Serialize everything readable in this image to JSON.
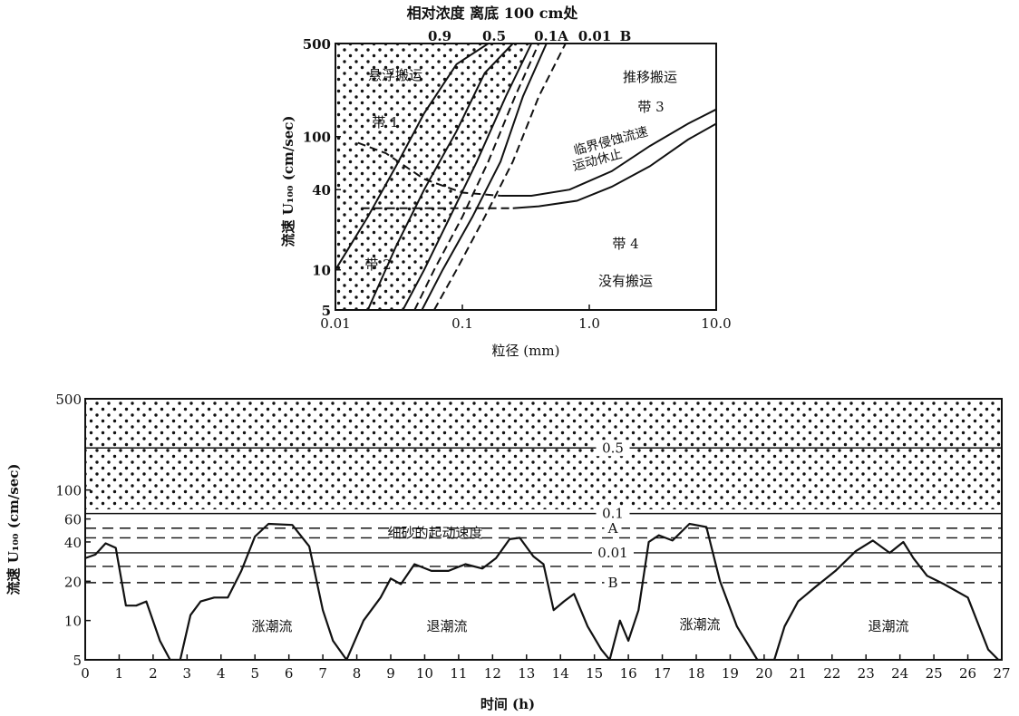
{
  "chart_data": [
    {
      "type": "line",
      "title": "相对浓度 离底 100 cm处",
      "xlabel": "粒径 (mm)",
      "ylabel": "流速 U₁₀₀ (cm/sec)",
      "x_scale": "log",
      "y_scale": "log",
      "xlim": [
        0.01,
        10.0
      ],
      "ylim": [
        5,
        500
      ],
      "x_ticks": [
        "0.01",
        "0.1",
        "1.0",
        "10.0"
      ],
      "y_ticks": [
        "5",
        "10",
        "40",
        "100",
        "500"
      ],
      "top_labels": [
        "0.9",
        "0.5",
        "0.1A",
        "0.01",
        "B"
      ],
      "zone_labels": {
        "suspension": "悬浮搬运",
        "traction": "推移搬运",
        "zone1": "带 1",
        "zone2": "带 2",
        "zone3": "带 3",
        "zone4": "带 4",
        "no_transport": "没有搬运",
        "erosion_label": "临界侵蚀流速",
        "deposition_label": "运动休止"
      },
      "series": [
        {
          "key": "c09",
          "style": "solid",
          "x": [
            0.01,
            0.018,
            0.03,
            0.05,
            0.09,
            0.16
          ],
          "y": [
            10,
            25,
            60,
            150,
            350,
            500
          ]
        },
        {
          "key": "c05",
          "style": "solid",
          "x": [
            0.018,
            0.03,
            0.05,
            0.09,
            0.15,
            0.25
          ],
          "y": [
            5,
            15,
            40,
            110,
            300,
            500
          ]
        },
        {
          "key": "c01",
          "style": "solid",
          "x": [
            0.034,
            0.05,
            0.08,
            0.13,
            0.22,
            0.35
          ],
          "y": [
            5,
            10,
            25,
            65,
            200,
            500
          ]
        },
        {
          "key": "cA",
          "style": "dashed",
          "x": [
            0.042,
            0.06,
            0.1,
            0.16,
            0.26,
            0.4
          ],
          "y": [
            5,
            10,
            25,
            65,
            200,
            500
          ]
        },
        {
          "key": "c001",
          "style": "solid",
          "x": [
            0.048,
            0.07,
            0.12,
            0.2,
            0.3,
            0.46
          ],
          "y": [
            5,
            10,
            25,
            65,
            200,
            500
          ]
        },
        {
          "key": "cB",
          "style": "dashed",
          "x": [
            0.06,
            0.09,
            0.15,
            0.25,
            0.4,
            0.65
          ],
          "y": [
            5,
            10,
            25,
            65,
            200,
            500
          ]
        },
        {
          "key": "erosion",
          "style": "solid",
          "x": [
            0.2,
            0.35,
            0.7,
            1.5,
            3.0,
            6.0,
            10.0
          ],
          "y": [
            36,
            36,
            40,
            55,
            85,
            125,
            160
          ]
        },
        {
          "key": "erosion_dashed",
          "style": "dashed",
          "x": [
            0.015,
            0.025,
            0.05,
            0.1,
            0.2
          ],
          "y": [
            90,
            75,
            48,
            38,
            36
          ]
        },
        {
          "key": "deposition",
          "style": "solid",
          "x": [
            0.25,
            0.4,
            0.8,
            1.5,
            3.0,
            6.0,
            10.0
          ],
          "y": [
            29,
            30,
            33,
            42,
            60,
            95,
            125
          ]
        },
        {
          "key": "deposition_dashed",
          "style": "dashed",
          "x": [
            0.016,
            0.05,
            0.12,
            0.25
          ],
          "y": [
            29,
            29,
            29,
            29
          ]
        }
      ]
    },
    {
      "type": "line",
      "xlabel": "时间 (h)",
      "ylabel": "流速 U₁₀₀ (cm/sec)",
      "y_scale": "log",
      "xlim": [
        0,
        27
      ],
      "ylim": [
        5,
        500
      ],
      "x_ticks": [
        "0",
        "1",
        "2",
        "3",
        "4",
        "5",
        "6",
        "7",
        "8",
        "9",
        "10",
        "11",
        "12",
        "13",
        "14",
        "15",
        "16",
        "17",
        "18",
        "19",
        "20",
        "21",
        "22",
        "23",
        "24",
        "25",
        "26",
        "27"
      ],
      "y_ticks": [
        "5",
        "10",
        "20",
        "40",
        "60",
        "100",
        "500"
      ],
      "fine_sand_label": "细砂的起动速度",
      "annotations": [
        "涨潮流",
        "退潮流",
        "涨潮流",
        "退潮流"
      ],
      "reference_lines": [
        {
          "label": "0.5",
          "y": 210,
          "style": "solid"
        },
        {
          "label": "0.1",
          "y": 66,
          "style": "solid"
        },
        {
          "label": "A",
          "y": 51,
          "style": "dashed"
        },
        {
          "label": "",
          "y": 43,
          "style": "dashed"
        },
        {
          "label": "0.01",
          "y": 33,
          "style": "solid"
        },
        {
          "label": "",
          "y": 26,
          "style": "dashed"
        },
        {
          "label": "B",
          "y": 19.5,
          "style": "dashed"
        }
      ],
      "series": [
        {
          "key": "tidal_velocity",
          "x": [
            0,
            0.3,
            0.6,
            0.9,
            1.2,
            1.5,
            1.8,
            2.2,
            2.5,
            2.8,
            3.1,
            3.4,
            3.8,
            4.2,
            4.6,
            5.0,
            5.4,
            6.1,
            6.6,
            7.0,
            7.3,
            7.7,
            8.2,
            8.7,
            9.0,
            9.3,
            9.7,
            10.2,
            10.7,
            11.2,
            11.7,
            12.1,
            12.5,
            12.8,
            13.2,
            13.5,
            13.8,
            14.1,
            14.4,
            14.8,
            15.2,
            15.45,
            15.75,
            16.0,
            16.3,
            16.6,
            16.9,
            17.3,
            17.8,
            18.3,
            18.7,
            19.2,
            19.8,
            20.3,
            20.6,
            21.0,
            21.5,
            22.1,
            22.7,
            23.2,
            23.7,
            24.1,
            24.4,
            24.8,
            25.3,
            26.0,
            26.6,
            26.9,
            27.0
          ],
          "y": [
            30,
            32,
            39,
            36,
            13,
            13,
            14,
            7,
            5,
            5,
            11,
            14,
            15,
            15,
            24,
            44,
            55,
            54,
            37,
            12,
            7,
            5,
            10,
            15,
            21,
            19,
            27,
            24,
            24,
            27,
            25,
            30,
            42,
            43,
            31,
            27,
            12,
            14,
            16,
            9,
            6,
            5,
            10,
            7,
            12,
            40,
            45,
            41,
            55,
            52,
            20,
            9,
            5,
            5,
            9,
            14,
            18,
            24,
            34,
            41,
            33,
            40,
            30,
            22,
            19,
            15,
            6,
            5,
            5
          ]
        }
      ]
    }
  ]
}
